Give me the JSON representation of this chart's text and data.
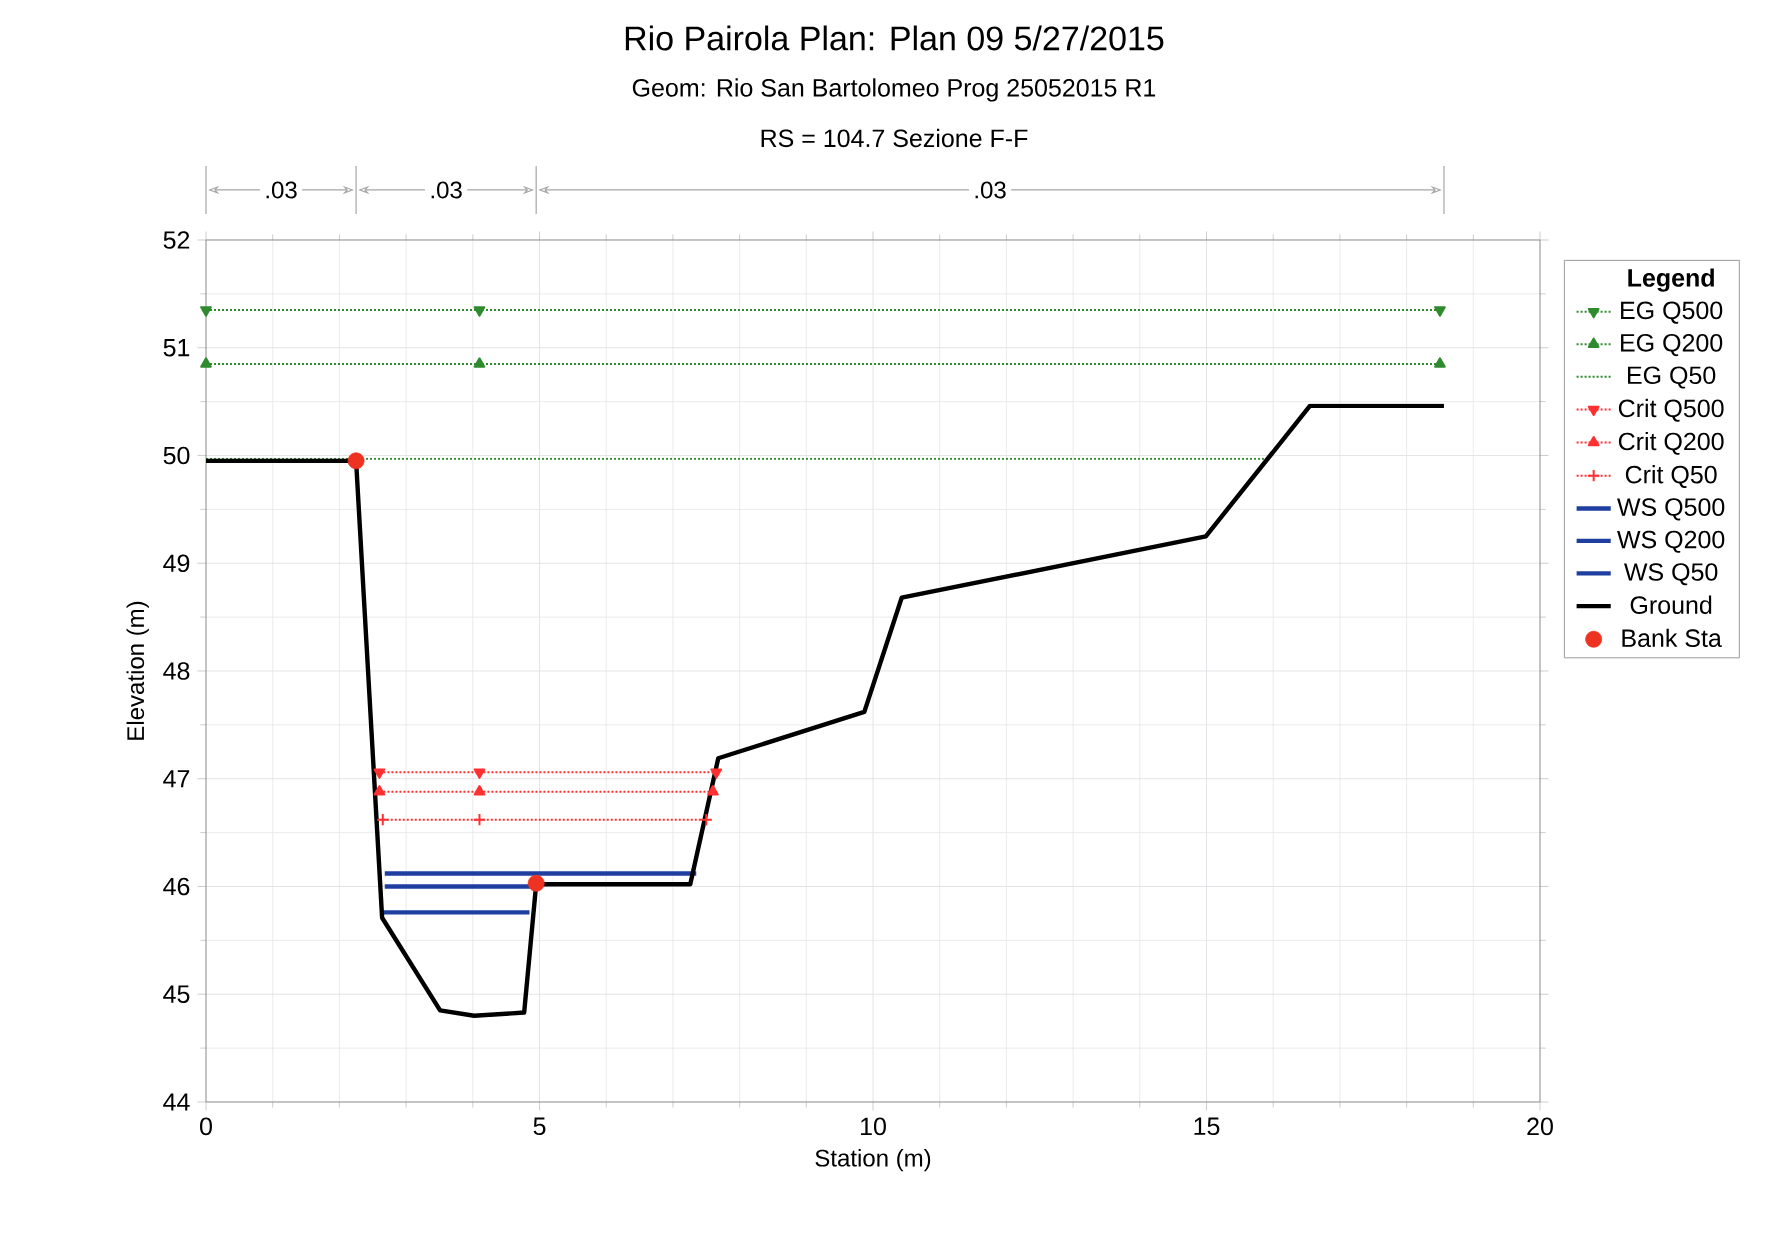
{
  "chart_data": {
    "type": "line",
    "title": "Rio Pairola        Plan: Plan 09     5/27/2015",
    "subtitle": "Geom: Rio San Bartolomeo Prog  25052015 R1",
    "annotations": [
      "RS = 104.7  Sezione F-F",
      ".03",
      ".03",
      ".03"
    ],
    "xlabel": "Station (m)",
    "ylabel": "Elevation (m)",
    "legend_title": "Legend",
    "xlim": [
      0,
      20
    ],
    "xticks": [
      0,
      5,
      10,
      15,
      20
    ],
    "ylim": [
      44,
      52
    ],
    "yticks": [
      44,
      45,
      46,
      47,
      48,
      49,
      50,
      51,
      52
    ],
    "grid": true,
    "legend": "right",
    "series": [
      {
        "name": "EG Q500",
        "color": "#2e8b2e",
        "line_style": "dotted",
        "marker": "triangle-down",
        "x": [
          0,
          4.1,
          18.5
        ],
        "values": [
          51.35,
          51.35,
          51.35
        ]
      },
      {
        "name": "EG Q200",
        "color": "#2e8b2e",
        "line_style": "dotted",
        "marker": "triangle",
        "x": [
          0,
          4.1,
          18.5
        ],
        "values": [
          50.85,
          50.85,
          50.85
        ]
      },
      {
        "name": "EG Q50",
        "color": "#2e8b2e",
        "line_style": "dotted",
        "marker": "none",
        "x": [
          0,
          15.9
        ],
        "values": [
          49.97,
          49.97
        ]
      },
      {
        "name": "Crit Q500",
        "color": "#ff3030",
        "line_style": "dotted",
        "marker": "triangle-down",
        "x": [
          2.6,
          4.1,
          7.65
        ],
        "values": [
          47.06,
          47.06,
          47.06
        ]
      },
      {
        "name": "Crit Q200",
        "color": "#ff3030",
        "line_style": "dotted",
        "marker": "triangle",
        "x": [
          2.6,
          4.1,
          7.6
        ],
        "values": [
          46.88,
          46.88,
          46.88
        ]
      },
      {
        "name": "Crit Q50",
        "color": "#ff3030",
        "line_style": "dotted",
        "marker": "cross",
        "x": [
          2.65,
          4.1,
          7.5
        ],
        "values": [
          46.62,
          46.62,
          46.62
        ]
      },
      {
        "name": "WS Q500",
        "color": "#1f3fa0",
        "line_style": "solid",
        "marker": "none",
        "x": [
          2.68,
          7.35
        ],
        "values": [
          46.12,
          46.12
        ]
      },
      {
        "name": "WS Q200",
        "color": "#1f3fa0",
        "line_style": "solid",
        "marker": "none",
        "x": [
          2.68,
          4.95
        ],
        "values": [
          46.0,
          46.0
        ]
      },
      {
        "name": "WS Q50",
        "color": "#1f3fa0",
        "line_style": "solid",
        "marker": "none",
        "x": [
          2.66,
          4.85
        ],
        "values": [
          45.76,
          45.76
        ]
      },
      {
        "name": "Ground",
        "color": "#000000",
        "line_style": "solid",
        "marker": "none",
        "x": [
          0,
          2.25,
          2.64,
          3.51,
          4.02,
          4.77,
          4.95,
          7.26,
          7.68,
          9.87,
          10.43,
          14.99,
          16.55,
          18.56
        ],
        "values": [
          49.95,
          49.95,
          45.71,
          44.85,
          44.8,
          44.83,
          46.02,
          46.02,
          47.19,
          47.62,
          48.68,
          49.25,
          50.46,
          50.46
        ]
      },
      {
        "name": "Bank Sta",
        "type": "scatter",
        "color": "#ee3322",
        "marker": "circle",
        "x": [
          2.25,
          4.95
        ],
        "values": [
          49.95,
          46.03
        ]
      }
    ]
  }
}
